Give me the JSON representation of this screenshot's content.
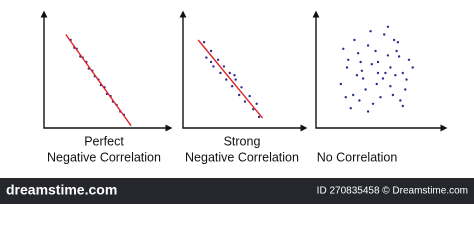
{
  "chart_data": [
    {
      "type": "scatter",
      "title": [
        "Perfect",
        "Negative Correlation"
      ],
      "x": [
        22,
        25,
        27,
        30,
        32,
        35,
        37,
        40,
        42,
        45,
        47,
        50,
        52,
        55,
        57,
        60,
        63,
        66
      ],
      "values": [
        80,
        73,
        72,
        65,
        64,
        60,
        54,
        52,
        47,
        44,
        39,
        37,
        31,
        29,
        24,
        21,
        15,
        12
      ],
      "color": "#2b2f8f",
      "xlim": [
        0,
        100
      ],
      "ylim": [
        0,
        100
      ],
      "trend_line": {
        "x": [
          18,
          72
        ],
        "y": [
          85,
          2
        ],
        "color": "#e02424"
      }
    },
    {
      "type": "scatter",
      "title": [
        "Strong",
        "Negative Correlation"
      ],
      "x": [
        18,
        20,
        24,
        26,
        30,
        32,
        35,
        37,
        40,
        42,
        45,
        48,
        50,
        53,
        57,
        60,
        63,
        65,
        24,
        44
      ],
      "values": [
        78,
        64,
        70,
        56,
        62,
        50,
        56,
        44,
        50,
        38,
        44,
        30,
        37,
        24,
        29,
        17,
        22,
        10,
        60,
        48
      ],
      "color": "#2b2f8f",
      "xlim": [
        0,
        100
      ],
      "ylim": [
        0,
        100
      ],
      "trend_line": {
        "x": [
          13,
          68
        ],
        "y": [
          80,
          9
        ],
        "color": "#e02424"
      }
    },
    {
      "type": "scatter",
      "title": [
        "No Correlation"
      ],
      "x": [
        20,
        25,
        30,
        34,
        38,
        42,
        46,
        50,
        55,
        60,
        65,
        70,
        75,
        22,
        28,
        33,
        40,
        45,
        52,
        58,
        63,
        68,
        73,
        78,
        26,
        31,
        37,
        44,
        49,
        56,
        62,
        67,
        72,
        35,
        48,
        54,
        60,
        66,
        42,
        58,
        24,
        70,
        50,
        36,
        64
      ],
      "values": [
        40,
        55,
        30,
        68,
        45,
        75,
        22,
        60,
        85,
        38,
        70,
        50,
        62,
        72,
        18,
        48,
        35,
        58,
        28,
        66,
        80,
        25,
        44,
        55,
        62,
        80,
        52,
        88,
        40,
        50,
        30,
        65,
        35,
        25,
        70,
        45,
        55,
        78,
        15,
        92,
        28,
        20,
        50,
        60,
        48
      ],
      "color": "#2b2f8f",
      "xlim": [
        0,
        100
      ],
      "ylim": [
        0,
        100
      ]
    }
  ],
  "footer": {
    "brand": "dreamstime.com",
    "id": "ID 270835458 © Dreamstime.com"
  }
}
